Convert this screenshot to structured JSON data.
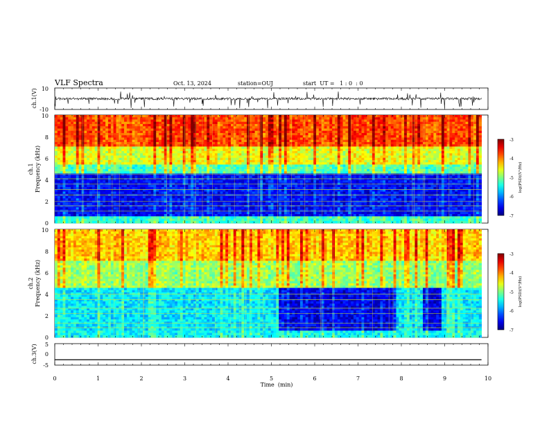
{
  "header": {
    "title": "VLF Spectra",
    "date": "Oct. 13, 2024",
    "station": "station=OUJ",
    "start_ut": "start  UT =   1 : 0  : 0"
  },
  "chart_data": [
    {
      "type": "line",
      "panel": "ch1-waveform",
      "ylabel": "ch.1(V)",
      "ylim": [
        -10,
        10
      ],
      "ytick_labels": [
        "10",
        "-10"
      ],
      "xlim": [
        0,
        10
      ],
      "note": "noisy waveform trace centered near 0 V, spikes to about -10 V",
      "color": "#000000"
    },
    {
      "type": "heatmap",
      "panel": "ch1-spectrogram",
      "ylabel": "ch.1",
      "ylabel2": "Frequency  (kHz)",
      "ylim": [
        0,
        10
      ],
      "ytick_labels": [
        "0",
        "2",
        "4",
        "6",
        "8",
        "10"
      ],
      "xlim": [
        0,
        9.85
      ],
      "colorbar": {
        "range": [
          -7,
          -3
        ],
        "tick_labels": [
          "-3",
          "-4",
          "-5",
          "-6",
          "-7"
        ],
        "label": "log(PSD)(V²/Hz)"
      },
      "band_levels": [
        {
          "f_from": 0,
          "f_to": 0.7,
          "log_psd": -5.3
        },
        {
          "f_from": 0.7,
          "f_to": 4.6,
          "log_psd": -6.5
        },
        {
          "f_from": 4.6,
          "f_to": 5.5,
          "log_psd": -5.2
        },
        {
          "f_from": 5.5,
          "f_to": 7.0,
          "log_psd": -4.6
        },
        {
          "f_from": 7.0,
          "f_to": 10,
          "log_psd": -3.8
        }
      ],
      "line_frequencies": [
        1.1,
        1.6,
        2.0,
        2.6,
        3.1,
        3.6,
        4.1,
        4.5
      ]
    },
    {
      "type": "heatmap",
      "panel": "ch2-spectrogram",
      "ylabel": "ch.2",
      "ylabel2": "Frequency  (kHz)",
      "ylim": [
        0,
        10
      ],
      "ytick_labels": [
        "0",
        "2",
        "4",
        "6",
        "8",
        "10"
      ],
      "xlim": [
        0,
        9.85
      ],
      "colorbar": {
        "range": [
          -7,
          -3
        ],
        "tick_labels": [
          "-3",
          "-4",
          "-5",
          "-6",
          "-7"
        ],
        "label": "log(PSD)(V²/Hz)"
      },
      "band_levels": [
        {
          "f_from": 0,
          "f_to": 0.7,
          "log_psd": -5.5
        },
        {
          "f_from": 0.7,
          "f_to": 4.6,
          "log_psd": -5.6
        },
        {
          "f_from": 4.6,
          "f_to": 7.0,
          "log_psd": -4.9
        },
        {
          "f_from": 7.0,
          "f_to": 10,
          "log_psd": -4.3
        }
      ],
      "quiet_intervals": [
        {
          "t_from": 5.2,
          "t_to": 7.85,
          "f_from": 0.6,
          "f_to": 4.5,
          "log_psd": -6.6
        },
        {
          "t_from": 8.5,
          "t_to": 8.9,
          "f_from": 0.6,
          "f_to": 4.5,
          "log_psd": -6.6
        }
      ],
      "line_frequencies": [
        0.9,
        1.3,
        2.2,
        2.7,
        3.5,
        4.0
      ]
    },
    {
      "type": "line",
      "panel": "ch3-waveform",
      "ylabel": "ch.3(V)",
      "ylim": [
        -5,
        5
      ],
      "ytick_labels": [
        "5",
        "0",
        "-5"
      ],
      "xlim": [
        0,
        10
      ],
      "series": [
        {
          "x": [
            0,
            9.85
          ],
          "y": [
            -2.5,
            -2.5
          ]
        }
      ],
      "xlabel": "Time  (min)",
      "xtick_labels": [
        "0",
        "1",
        "2",
        "3",
        "4",
        "5",
        "6",
        "7",
        "8",
        "9",
        "10"
      ]
    }
  ]
}
